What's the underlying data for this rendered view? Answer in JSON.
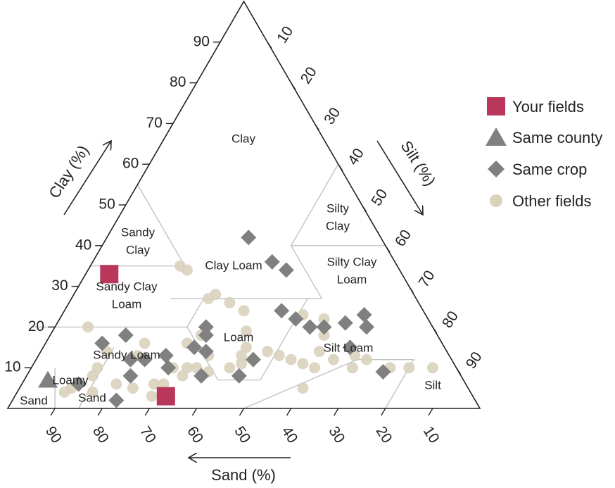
{
  "chart_data": {
    "type": "scatter",
    "subtype": "soil-texture-ternary",
    "axes": {
      "clay": {
        "label": "Clay (%)",
        "ticks": [
          10,
          20,
          30,
          40,
          50,
          60,
          70,
          80,
          90
        ]
      },
      "silt": {
        "label": "Silt (%)",
        "ticks": [
          10,
          20,
          30,
          40,
          50,
          60,
          70,
          80,
          90
        ]
      },
      "sand": {
        "label": "Sand (%)",
        "ticks": [
          90,
          80,
          70,
          60,
          50,
          40,
          30,
          20,
          10
        ]
      }
    },
    "regions": [
      {
        "id": "clay",
        "lines": [
          "Clay"
        ]
      },
      {
        "id": "silty-clay",
        "lines": [
          "Silty",
          "Clay"
        ]
      },
      {
        "id": "sandy-clay",
        "lines": [
          "Sandy",
          "Clay"
        ]
      },
      {
        "id": "clay-loam",
        "lines": [
          "Clay Loam"
        ]
      },
      {
        "id": "silty-clay-loam",
        "lines": [
          "Silty Clay",
          "Loam"
        ]
      },
      {
        "id": "sandy-clay-loam",
        "lines": [
          "Sandy Clay",
          "Loam"
        ]
      },
      {
        "id": "loam",
        "lines": [
          "Loam"
        ]
      },
      {
        "id": "silt-loam",
        "lines": [
          "Silt Loam"
        ]
      },
      {
        "id": "sandy-loam",
        "lines": [
          "Sandy Loam"
        ]
      },
      {
        "id": "loamy-sand",
        "lines": [
          "Loamy",
          "Sand"
        ]
      },
      {
        "id": "sand",
        "lines": [
          "Sand"
        ]
      },
      {
        "id": "silt",
        "lines": [
          "Silt"
        ]
      }
    ],
    "legend_position": "right",
    "series": [
      {
        "name": "Your fields",
        "marker": "square",
        "color": "#b8375a",
        "points": [
          {
            "sand": 62,
            "clay": 33
          },
          {
            "sand": 65,
            "clay": 3
          }
        ]
      },
      {
        "name": "Same county",
        "marker": "triangle",
        "color": "#808080",
        "points": [
          {
            "sand": 88,
            "clay": 7
          }
        ]
      },
      {
        "name": "Same crop",
        "marker": "diamond",
        "color": "#808080",
        "points": [
          {
            "sand": 28,
            "clay": 42
          },
          {
            "sand": 26,
            "clay": 36
          },
          {
            "sand": 24,
            "clay": 34
          },
          {
            "sand": 30,
            "clay": 24
          },
          {
            "sand": 28,
            "clay": 22
          },
          {
            "sand": 26,
            "clay": 20
          },
          {
            "sand": 23,
            "clay": 20
          },
          {
            "sand": 18,
            "clay": 21
          },
          {
            "sand": 13,
            "clay": 23
          },
          {
            "sand": 14,
            "clay": 20
          },
          {
            "sand": 20,
            "clay": 15
          },
          {
            "sand": 16,
            "clay": 9
          },
          {
            "sand": 76,
            "clay": 2
          },
          {
            "sand": 82,
            "clay": 6
          },
          {
            "sand": 72,
            "clay": 16
          },
          {
            "sand": 66,
            "clay": 18
          },
          {
            "sand": 68,
            "clay": 12
          },
          {
            "sand": 70,
            "clay": 8
          },
          {
            "sand": 65,
            "clay": 12
          },
          {
            "sand": 60,
            "clay": 13
          },
          {
            "sand": 61,
            "clay": 10
          },
          {
            "sand": 48,
            "clay": 20
          },
          {
            "sand": 49,
            "clay": 18
          },
          {
            "sand": 51,
            "clay": 14
          },
          {
            "sand": 53,
            "clay": 15
          },
          {
            "sand": 42,
            "clay": 12
          },
          {
            "sand": 47,
            "clay": 8
          },
          {
            "sand": 55,
            "clay": 8
          }
        ]
      },
      {
        "name": "Other fields",
        "marker": "circle",
        "color": "#d9d2bd",
        "points": [
          {
            "sand": 73,
            "clay": 20
          },
          {
            "sand": 72,
            "clay": 14
          },
          {
            "sand": 76,
            "clay": 10
          },
          {
            "sand": 66,
            "clay": 13
          },
          {
            "sand": 63,
            "clay": 16
          },
          {
            "sand": 66,
            "clay": 6
          },
          {
            "sand": 68,
            "clay": 3
          },
          {
            "sand": 71,
            "clay": 5
          },
          {
            "sand": 74,
            "clay": 6
          },
          {
            "sand": 80,
            "clay": 4
          },
          {
            "sand": 84,
            "clay": 5
          },
          {
            "sand": 86,
            "clay": 4
          },
          {
            "sand": 64,
            "clay": 6
          },
          {
            "sand": 60,
            "clay": 10
          },
          {
            "sand": 59,
            "clay": 8
          },
          {
            "sand": 57,
            "clay": 10
          },
          {
            "sand": 55,
            "clay": 10
          },
          {
            "sand": 53,
            "clay": 9
          },
          {
            "sand": 51,
            "clay": 13
          },
          {
            "sand": 48,
            "clay": 10
          },
          {
            "sand": 45,
            "clay": 11
          },
          {
            "sand": 44,
            "clay": 13
          },
          {
            "sand": 42,
            "clay": 15
          },
          {
            "sand": 40,
            "clay": 19
          },
          {
            "sand": 38,
            "clay": 14
          },
          {
            "sand": 36,
            "clay": 13
          },
          {
            "sand": 34,
            "clay": 12
          },
          {
            "sand": 32,
            "clay": 11
          },
          {
            "sand": 30,
            "clay": 10
          },
          {
            "sand": 27,
            "clay": 14
          },
          {
            "sand": 25,
            "clay": 12
          },
          {
            "sand": 22,
            "clay": 10
          },
          {
            "sand": 20,
            "clay": 13
          },
          {
            "sand": 18,
            "clay": 12
          },
          {
            "sand": 14,
            "clay": 10
          },
          {
            "sand": 10,
            "clay": 10
          },
          {
            "sand": 5,
            "clay": 10
          },
          {
            "sand": 24,
            "clay": 18
          },
          {
            "sand": 22,
            "clay": 22
          },
          {
            "sand": 26,
            "clay": 23
          },
          {
            "sand": 45,
            "clay": 34
          },
          {
            "sand": 46,
            "clay": 35
          },
          {
            "sand": 42,
            "clay": 28
          },
          {
            "sand": 44,
            "clay": 27
          },
          {
            "sand": 40,
            "clay": 26
          },
          {
            "sand": 38,
            "clay": 24
          },
          {
            "sand": 50,
            "clay": 18
          },
          {
            "sand": 54,
            "clay": 16
          },
          {
            "sand": 35,
            "clay": 5
          },
          {
            "sand": 78,
            "clay": 8
          }
        ]
      }
    ]
  }
}
